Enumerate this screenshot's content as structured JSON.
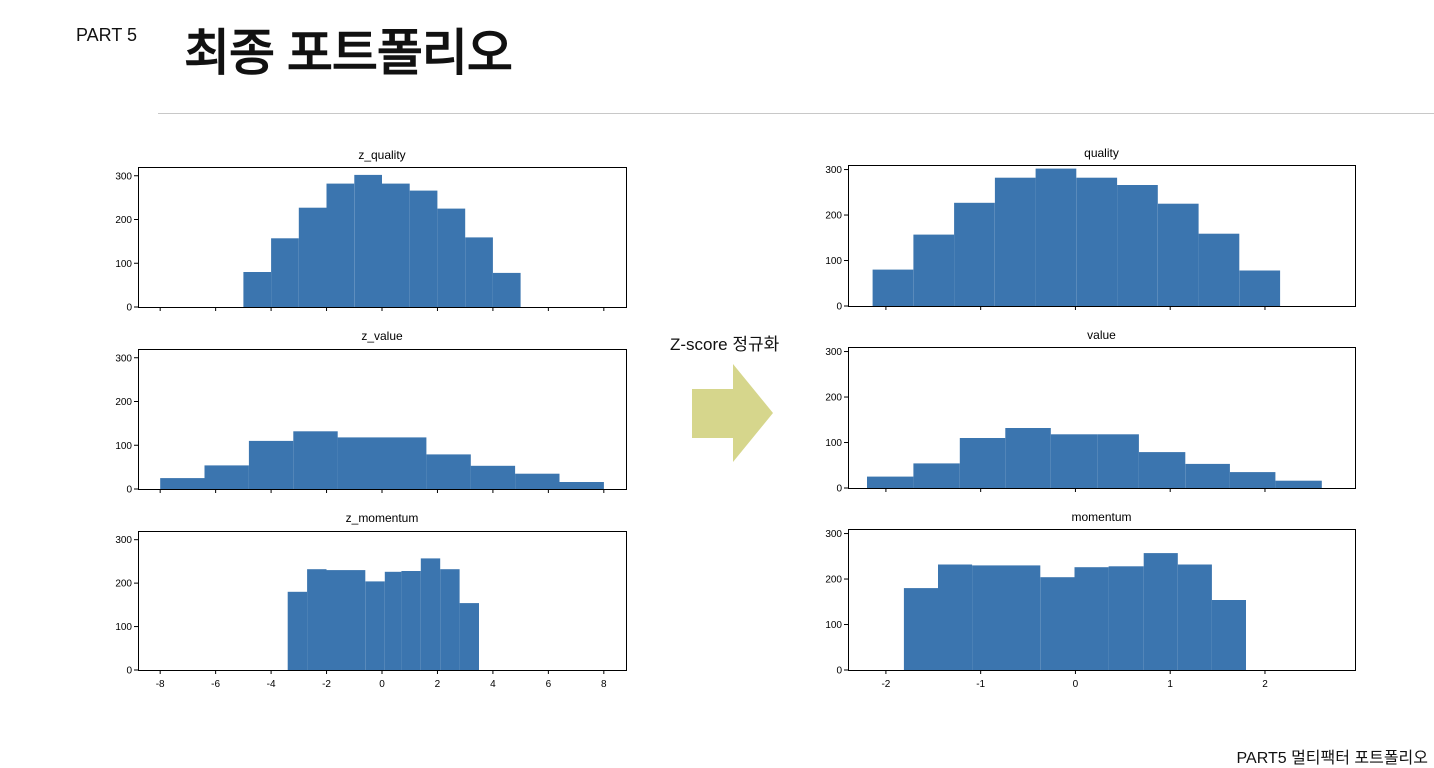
{
  "header": {
    "part_label": "PART 5",
    "title": "최종 포트폴리오"
  },
  "arrow": {
    "caption": "Z-score 정규화",
    "color": "#d6d68c"
  },
  "footer": {
    "text": "PART5 멀티팩터 포트폴리오"
  },
  "colors": {
    "bar": "#3b75af",
    "divider": "#c8c8c8"
  },
  "chart_data": [
    {
      "type": "histogram",
      "title": "z_quality",
      "xlim": [
        -8.8,
        8.8
      ],
      "ylim": [
        0,
        320
      ],
      "xticks": [
        -8,
        -6,
        -4,
        -2,
        0,
        2,
        4,
        6,
        8
      ],
      "xticks_labeled": false,
      "yticks": [
        0,
        100,
        200,
        300
      ],
      "bins": [
        {
          "x0": -5.0,
          "x1": -4.0,
          "count": 80
        },
        {
          "x0": -4.0,
          "x1": -3.0,
          "count": 157
        },
        {
          "x0": -3.0,
          "x1": -2.0,
          "count": 227
        },
        {
          "x0": -2.0,
          "x1": -1.0,
          "count": 282
        },
        {
          "x0": -1.0,
          "x1": 0.0,
          "count": 302
        },
        {
          "x0": 0.0,
          "x1": 1.0,
          "count": 282
        },
        {
          "x0": 1.0,
          "x1": 2.0,
          "count": 266
        },
        {
          "x0": 2.0,
          "x1": 3.0,
          "count": 225
        },
        {
          "x0": 3.0,
          "x1": 4.0,
          "count": 159
        },
        {
          "x0": 4.0,
          "x1": 5.0,
          "count": 78
        }
      ]
    },
    {
      "type": "histogram",
      "title": "z_value",
      "xlim": [
        -8.8,
        8.8
      ],
      "ylim": [
        0,
        320
      ],
      "xticks": [
        -8,
        -6,
        -4,
        -2,
        0,
        2,
        4,
        6,
        8
      ],
      "xticks_labeled": false,
      "yticks": [
        0,
        100,
        200,
        300
      ],
      "bins": [
        {
          "x0": -8.0,
          "x1": -6.4,
          "count": 25
        },
        {
          "x0": -6.4,
          "x1": -4.8,
          "count": 54
        },
        {
          "x0": -4.8,
          "x1": -3.2,
          "count": 110
        },
        {
          "x0": -3.2,
          "x1": -1.6,
          "count": 132
        },
        {
          "x0": -1.6,
          "x1": 0.0,
          "count": 118
        },
        {
          "x0": 0.0,
          "x1": 1.6,
          "count": 118
        },
        {
          "x0": 1.6,
          "x1": 3.2,
          "count": 79
        },
        {
          "x0": 3.2,
          "x1": 4.8,
          "count": 53
        },
        {
          "x0": 4.8,
          "x1": 6.4,
          "count": 35
        },
        {
          "x0": 6.4,
          "x1": 8.0,
          "count": 16
        }
      ]
    },
    {
      "type": "histogram",
      "title": "z_momentum",
      "xlim": [
        -8.8,
        8.8
      ],
      "ylim": [
        0,
        320
      ],
      "xticks": [
        -8,
        -6,
        -4,
        -2,
        0,
        2,
        4,
        6,
        8
      ],
      "xticks_labeled": true,
      "yticks": [
        0,
        100,
        200,
        300
      ],
      "bins": [
        {
          "x0": -3.4,
          "x1": -2.7,
          "count": 180
        },
        {
          "x0": -2.7,
          "x1": -2.0,
          "count": 232
        },
        {
          "x0": -2.0,
          "x1": -0.6,
          "count": 230
        },
        {
          "x0": -0.6,
          "x1": 0.1,
          "count": 204
        },
        {
          "x0": 0.1,
          "x1": 0.7,
          "count": 226
        },
        {
          "x0": 0.7,
          "x1": 1.4,
          "count": 228
        },
        {
          "x0": 1.4,
          "x1": 2.1,
          "count": 257
        },
        {
          "x0": 2.1,
          "x1": 2.8,
          "count": 232
        },
        {
          "x0": 2.8,
          "x1": 3.5,
          "count": 154
        }
      ]
    },
    {
      "type": "histogram",
      "title": "quality",
      "xlim": [
        -2.4,
        2.95
      ],
      "ylim": [
        0,
        310
      ],
      "xticks": [
        -2,
        -1,
        0,
        1,
        2
      ],
      "xticks_labeled": false,
      "yticks": [
        0,
        100,
        200,
        300
      ],
      "bins": [
        {
          "x0": -2.14,
          "x1": -1.71,
          "count": 80
        },
        {
          "x0": -1.71,
          "x1": -1.28,
          "count": 157
        },
        {
          "x0": -1.28,
          "x1": -0.85,
          "count": 227
        },
        {
          "x0": -0.85,
          "x1": -0.42,
          "count": 282
        },
        {
          "x0": -0.42,
          "x1": 0.01,
          "count": 302
        },
        {
          "x0": 0.01,
          "x1": 0.44,
          "count": 282
        },
        {
          "x0": 0.44,
          "x1": 0.87,
          "count": 266
        },
        {
          "x0": 0.87,
          "x1": 1.3,
          "count": 225
        },
        {
          "x0": 1.3,
          "x1": 1.73,
          "count": 159
        },
        {
          "x0": 1.73,
          "x1": 2.16,
          "count": 78
        }
      ]
    },
    {
      "type": "histogram",
      "title": "value",
      "xlim": [
        -2.4,
        2.95
      ],
      "ylim": [
        0,
        310
      ],
      "xticks": [
        -2,
        -1,
        0,
        1,
        2
      ],
      "xticks_labeled": false,
      "yticks": [
        0,
        100,
        200,
        300
      ],
      "bins": [
        {
          "x0": -2.2,
          "x1": -1.71,
          "count": 25
        },
        {
          "x0": -1.71,
          "x1": -1.22,
          "count": 54
        },
        {
          "x0": -1.22,
          "x1": -0.74,
          "count": 110
        },
        {
          "x0": -0.74,
          "x1": -0.26,
          "count": 132
        },
        {
          "x0": -0.26,
          "x1": 0.23,
          "count": 118
        },
        {
          "x0": 0.23,
          "x1": 0.67,
          "count": 118
        },
        {
          "x0": 0.67,
          "x1": 1.16,
          "count": 79
        },
        {
          "x0": 1.16,
          "x1": 1.63,
          "count": 53
        },
        {
          "x0": 1.63,
          "x1": 2.11,
          "count": 35
        },
        {
          "x0": 2.11,
          "x1": 2.6,
          "count": 16
        }
      ]
    },
    {
      "type": "histogram",
      "title": "momentum",
      "xlim": [
        -2.4,
        2.95
      ],
      "ylim": [
        0,
        310
      ],
      "xticks": [
        -2,
        -1,
        0,
        1,
        2
      ],
      "xticks_labeled": true,
      "yticks": [
        0,
        100,
        200,
        300
      ],
      "bins": [
        {
          "x0": -1.81,
          "x1": -1.45,
          "count": 180
        },
        {
          "x0": -1.45,
          "x1": -1.09,
          "count": 232
        },
        {
          "x0": -1.09,
          "x1": -0.37,
          "count": 230
        },
        {
          "x0": -0.37,
          "x1": -0.01,
          "count": 204
        },
        {
          "x0": -0.01,
          "x1": 0.35,
          "count": 226
        },
        {
          "x0": 0.35,
          "x1": 0.72,
          "count": 228
        },
        {
          "x0": 0.72,
          "x1": 1.08,
          "count": 257
        },
        {
          "x0": 1.08,
          "x1": 1.44,
          "count": 232
        },
        {
          "x0": 1.44,
          "x1": 1.8,
          "count": 154
        }
      ]
    }
  ]
}
